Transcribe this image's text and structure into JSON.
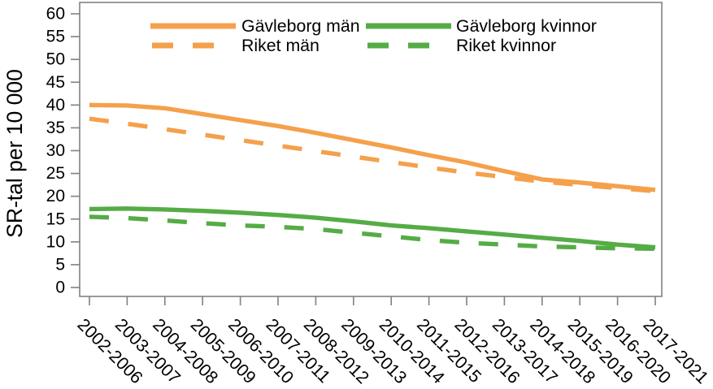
{
  "chart_data": {
    "type": "line",
    "title": "",
    "xlabel": "",
    "ylabel": "SR-tal per 10 000",
    "ylim": [
      0,
      60
    ],
    "ytick_step": 5,
    "grid": false,
    "legend_position": "top-inside-two-columns",
    "axis_color": "#818181",
    "text_color": "#000000",
    "categories": [
      "2002-2006",
      "2003-2007",
      "2004-2008",
      "2005-2009",
      "2006-2010",
      "2007-2011",
      "2008-2012",
      "2009-2013",
      "2010-2014",
      "2011-2015",
      "2012-2016",
      "2013-2017",
      "2014-2018",
      "2015-2019",
      "2016-2020",
      "2017-2021"
    ],
    "series": [
      {
        "name": "Gävleborg män",
        "color": "#F5A04B",
        "dashed": false,
        "values": [
          40.0,
          39.9,
          39.3,
          38.0,
          36.7,
          35.4,
          33.9,
          32.3,
          30.7,
          29.0,
          27.4,
          25.5,
          23.7,
          23.0,
          22.2,
          21.4
        ]
      },
      {
        "name": "Riket män",
        "color": "#F5A04B",
        "dashed": true,
        "values": [
          37.0,
          35.9,
          34.7,
          33.5,
          32.3,
          31.1,
          29.9,
          28.7,
          27.5,
          26.3,
          25.2,
          24.2,
          23.2,
          22.5,
          21.8,
          21.1
        ]
      },
      {
        "name": "Gävleborg kvinnor",
        "color": "#55AC46",
        "dashed": false,
        "values": [
          17.2,
          17.3,
          17.1,
          16.8,
          16.4,
          15.9,
          15.3,
          14.5,
          13.6,
          13.0,
          12.3,
          11.6,
          10.9,
          10.2,
          9.4,
          8.8
        ]
      },
      {
        "name": "Riket kvinnor",
        "color": "#55AC46",
        "dashed": true,
        "values": [
          15.5,
          15.2,
          14.7,
          14.1,
          13.6,
          13.3,
          12.8,
          12.0,
          11.2,
          10.4,
          9.8,
          9.4,
          9.0,
          8.8,
          8.6,
          8.5
        ]
      }
    ]
  }
}
